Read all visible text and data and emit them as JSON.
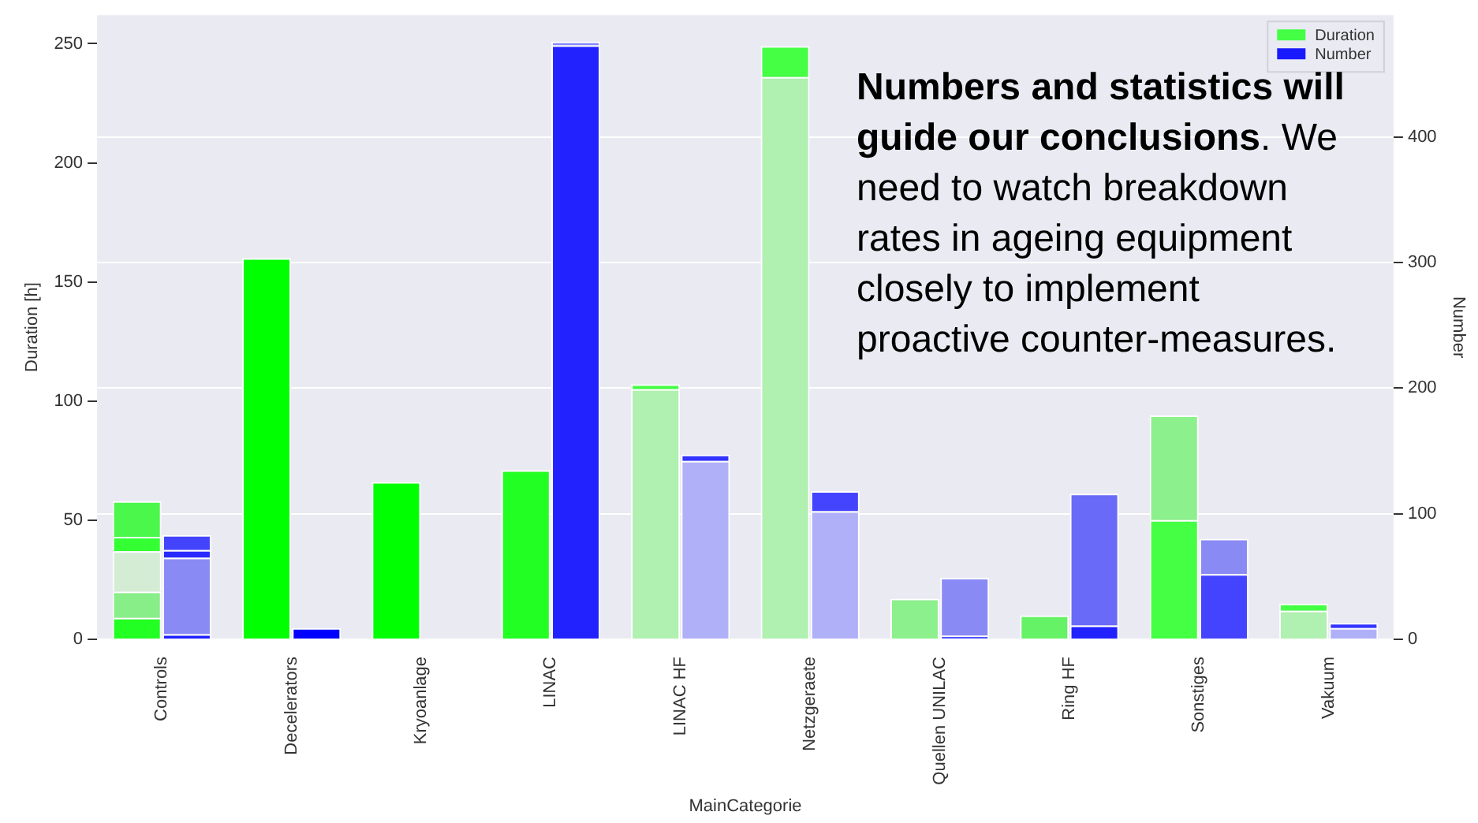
{
  "chart_data": {
    "type": "bar",
    "stacked": true,
    "categories": [
      "Controls",
      "Decelerators",
      "Kryoanlage",
      "LINAC",
      "LINAC HF",
      "Netzgeraete",
      "Quellen UNILAC",
      "Ring HF",
      "Sonstiges",
      "Vakuum"
    ],
    "xlabel": "MainCategorie",
    "ylabel": "Duration [h]",
    "y2label": "Number",
    "ylim": [
      0,
      262
    ],
    "yticks": [
      0,
      50,
      100,
      150,
      200,
      250
    ],
    "y2lim": [
      0,
      497
    ],
    "y2ticks": [
      0,
      100,
      200,
      300,
      400
    ],
    "grid": "y2",
    "legend": "top right",
    "annotations": [
      "Numbers and statistics will guide our conclusions",
      ". We need to watch breakdown rates in ageing equipment closely to implement proactive counter-measures."
    ],
    "series": [
      {
        "name": "Duration",
        "color": "#44ff44",
        "axis": "y",
        "values": [
          9,
          160,
          66,
          71,
          105,
          236,
          17,
          10,
          50,
          12
        ],
        "colors": [
          "#22ff22",
          "#00ff00",
          "#00ff00",
          "#22ff22",
          "#b0f0b0",
          "#b0f0b0",
          "#8cf08c",
          "#66f266",
          "#44ff44",
          "#b0f0b0"
        ]
      },
      {
        "color": "#88ee88",
        "axis": "y",
        "values": [
          11,
          null,
          null,
          null,
          2,
          13,
          null,
          null,
          44,
          3
        ],
        "colors": [
          "#88ee88",
          null,
          null,
          null,
          "#44ff44",
          "#44ff44",
          null,
          null,
          "#8cf08c",
          "#44ff44"
        ]
      },
      {
        "color": "#d4ecd4",
        "axis": "y",
        "values": [
          17,
          null,
          null,
          null,
          null,
          null,
          null,
          null,
          null,
          null
        ]
      },
      {
        "color": "#33ff33",
        "axis": "y",
        "values": [
          6,
          null,
          null,
          null,
          null,
          null,
          null,
          null,
          null,
          null
        ]
      },
      {
        "color": "#4cf74c",
        "axis": "y",
        "values": [
          15,
          null,
          null,
          null,
          null,
          null,
          null,
          null,
          null,
          null
        ]
      },
      {
        "name": "Number",
        "color": "#1a1aff",
        "axis": "y2",
        "values": [
          4,
          9,
          null,
          473,
          142,
          102,
          3,
          11,
          52,
          9
        ],
        "colors": [
          "#2020ff",
          "#0000ff",
          "#8888ff",
          "#2222ff",
          "#b0b0f8",
          "#b0b0f8",
          "#5555ff",
          "#2222ff",
          "#4444ff",
          "#b0b0f8"
        ]
      },
      {
        "color": "#8a8af5",
        "axis": "y2",
        "values": [
          61,
          null,
          null,
          3,
          5,
          16,
          46,
          105,
          28,
          4
        ],
        "colors": [
          "#8a8af5",
          null,
          null,
          "#8888ff",
          "#3333ff",
          "#4444ff",
          "#8a8af5",
          "#6a6af8",
          "#8a8af5",
          "#3333ff"
        ]
      },
      {
        "color": "#2a2aff",
        "axis": "y2",
        "values": [
          6,
          null,
          null,
          null,
          null,
          null,
          null,
          null,
          null,
          null
        ]
      },
      {
        "color": "#4444ff",
        "axis": "y2",
        "values": [
          12,
          null,
          null,
          null,
          null,
          null,
          null,
          null,
          null,
          null
        ]
      }
    ]
  }
}
